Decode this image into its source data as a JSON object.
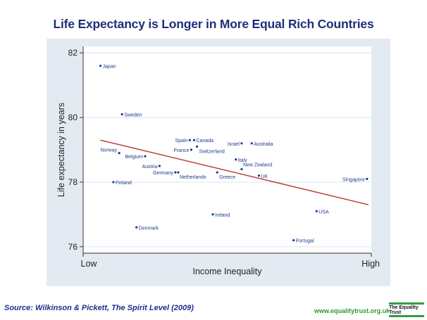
{
  "title": "Life Expectancy is Longer in More Equal Rich Countries",
  "source": "Source: Wilkinson & Pickett, The Spirit Level (2009)",
  "website": "www.equalitytrust.org.uk",
  "logo_text": "The Equality Trust",
  "colors": {
    "title": "#1f2f7a",
    "point": "#1f3a8a",
    "fit_line": "#b5463a",
    "panel": "#e4eaf2",
    "logo_accent": "#2ea043"
  },
  "chart_data": {
    "type": "scatter",
    "title": "Life Expectancy is Longer in More Equal Rich Countries",
    "xlabel": "Income Inequality",
    "ylabel": "Life expectancy in years",
    "x_tick_labels": [
      "Low",
      "High"
    ],
    "xlim": [
      0,
      10
    ],
    "ylim": [
      75.8,
      82.2
    ],
    "yticks": [
      76,
      78,
      80,
      82
    ],
    "grid": true,
    "points": [
      {
        "label": "Japan",
        "x": 0.6,
        "y": 81.6
      },
      {
        "label": "Sweden",
        "x": 1.35,
        "y": 80.1
      },
      {
        "label": "Norway",
        "x": 1.25,
        "y": 78.9
      },
      {
        "label": "Belgium",
        "x": 2.15,
        "y": 78.8
      },
      {
        "label": "Austria",
        "x": 2.65,
        "y": 78.5
      },
      {
        "label": "Finland",
        "x": 1.05,
        "y": 78.0
      },
      {
        "label": "Germany",
        "x": 3.2,
        "y": 78.3
      },
      {
        "label": "Netherlands",
        "x": 3.3,
        "y": 78.3
      },
      {
        "label": "Spain",
        "x": 3.7,
        "y": 79.3
      },
      {
        "label": "Canada",
        "x": 3.85,
        "y": 79.3
      },
      {
        "label": "France",
        "x": 3.75,
        "y": 79.0
      },
      {
        "label": "Switzerland",
        "x": 3.95,
        "y": 79.1
      },
      {
        "label": "Israel",
        "x": 5.5,
        "y": 79.2
      },
      {
        "label": "Australia",
        "x": 5.85,
        "y": 79.2
      },
      {
        "label": "Italy",
        "x": 5.3,
        "y": 78.7
      },
      {
        "label": "New Zealand",
        "x": 5.5,
        "y": 78.4
      },
      {
        "label": "Greece",
        "x": 4.65,
        "y": 78.3
      },
      {
        "label": "UK",
        "x": 6.1,
        "y": 78.2
      },
      {
        "label": "Singapore",
        "x": 9.85,
        "y": 78.1
      },
      {
        "label": "Ireland",
        "x": 4.5,
        "y": 77.0
      },
      {
        "label": "Denmark",
        "x": 1.85,
        "y": 76.6
      },
      {
        "label": "USA",
        "x": 8.1,
        "y": 77.1
      },
      {
        "label": "Portugal",
        "x": 7.3,
        "y": 76.2
      }
    ],
    "fit_line": {
      "x": [
        0.6,
        9.9
      ],
      "y": [
        79.3,
        77.3
      ]
    }
  }
}
